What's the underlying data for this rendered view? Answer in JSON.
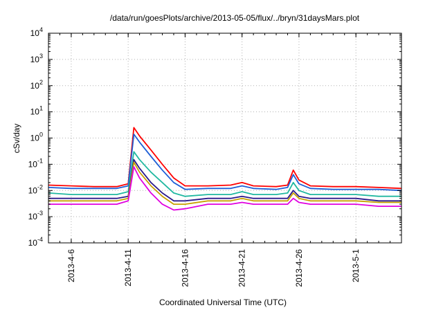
{
  "chart_data": {
    "type": "line",
    "title": "/data/run/goesPlots/archive/2013-05-05/flux/../bryn/31daysMars.plot",
    "xlabel": "Coordinated Universal Time (UTC)",
    "ylabel": "cSv/day",
    "yscale": "log",
    "ylim": [
      0.0001,
      10000
    ],
    "y_ticks": [
      {
        "base": "10",
        "exp": "-4",
        "value": 0.0001
      },
      {
        "base": "10",
        "exp": "-3",
        "value": 0.001
      },
      {
        "base": "10",
        "exp": "-2",
        "value": 0.01
      },
      {
        "base": "10",
        "exp": "-1",
        "value": 0.1
      },
      {
        "base": "10",
        "exp": "0",
        "value": 1
      },
      {
        "base": "10",
        "exp": "1",
        "value": 10
      },
      {
        "base": "10",
        "exp": "2",
        "value": 100
      },
      {
        "base": "10",
        "exp": "3",
        "value": 1000
      },
      {
        "base": "10",
        "exp": "4",
        "value": 10000
      }
    ],
    "xlim": [
      "2013-04-04",
      "2013-05-05"
    ],
    "x_ticks": [
      "2013-4-6",
      "2013-4-11",
      "2013-4-16",
      "2013-4-21",
      "2013-4-26",
      "2013-5-1"
    ],
    "grid": true,
    "legend": "none",
    "series": [
      {
        "color": "#ff0000",
        "x": [
          "2013-04-04",
          "2013-04-06",
          "2013-04-08",
          "2013-04-10",
          "2013-04-11",
          "2013-04-11T12",
          "2013-04-12",
          "2013-04-13",
          "2013-04-14",
          "2013-04-15",
          "2013-04-16",
          "2013-04-18",
          "2013-04-20",
          "2013-04-21",
          "2013-04-22",
          "2013-04-24",
          "2013-04-25",
          "2013-04-25T12",
          "2013-04-26",
          "2013-04-27",
          "2013-04-29",
          "2013-05-01",
          "2013-05-03",
          "2013-05-05"
        ],
        "y": [
          0.016,
          0.015,
          0.014,
          0.014,
          0.018,
          2.5,
          1.2,
          0.35,
          0.1,
          0.03,
          0.015,
          0.015,
          0.016,
          0.02,
          0.015,
          0.014,
          0.016,
          0.06,
          0.025,
          0.015,
          0.014,
          0.014,
          0.013,
          0.012
        ]
      },
      {
        "color": "#1f5fd6",
        "x": [
          "2013-04-04",
          "2013-04-06",
          "2013-04-08",
          "2013-04-10",
          "2013-04-11",
          "2013-04-11T12",
          "2013-04-12",
          "2013-04-13",
          "2013-04-14",
          "2013-04-15",
          "2013-04-16",
          "2013-04-18",
          "2013-04-20",
          "2013-04-21",
          "2013-04-22",
          "2013-04-24",
          "2013-04-25",
          "2013-04-25T12",
          "2013-04-26",
          "2013-04-27",
          "2013-04-29",
          "2013-05-01",
          "2013-05-03",
          "2013-05-05"
        ],
        "y": [
          0.013,
          0.012,
          0.012,
          0.012,
          0.015,
          1.4,
          0.7,
          0.2,
          0.06,
          0.02,
          0.011,
          0.012,
          0.012,
          0.015,
          0.012,
          0.011,
          0.013,
          0.04,
          0.018,
          0.012,
          0.011,
          0.011,
          0.011,
          0.01
        ]
      },
      {
        "color": "#20b8a0",
        "x": [
          "2013-04-04",
          "2013-04-06",
          "2013-04-08",
          "2013-04-10",
          "2013-04-11",
          "2013-04-11T12",
          "2013-04-12",
          "2013-04-13",
          "2013-04-14",
          "2013-04-15",
          "2013-04-16",
          "2013-04-18",
          "2013-04-20",
          "2013-04-21",
          "2013-04-22",
          "2013-04-24",
          "2013-04-25",
          "2013-04-25T12",
          "2013-04-26",
          "2013-04-27",
          "2013-04-29",
          "2013-05-01",
          "2013-05-03",
          "2013-05-05"
        ],
        "y": [
          0.008,
          0.007,
          0.007,
          0.007,
          0.009,
          0.3,
          0.15,
          0.05,
          0.02,
          0.008,
          0.006,
          0.007,
          0.007,
          0.009,
          0.007,
          0.007,
          0.008,
          0.02,
          0.01,
          0.007,
          0.007,
          0.007,
          0.006,
          0.006
        ]
      },
      {
        "color": "#2a1a8a",
        "x": [
          "2013-04-04",
          "2013-04-06",
          "2013-04-08",
          "2013-04-10",
          "2013-04-11",
          "2013-04-11T12",
          "2013-04-12",
          "2013-04-13",
          "2013-04-14",
          "2013-04-15",
          "2013-04-16",
          "2013-04-18",
          "2013-04-20",
          "2013-04-21",
          "2013-04-22",
          "2013-04-24",
          "2013-04-25",
          "2013-04-25T12",
          "2013-04-26",
          "2013-04-27",
          "2013-04-29",
          "2013-05-01",
          "2013-05-03",
          "2013-05-05"
        ],
        "y": [
          0.005,
          0.005,
          0.005,
          0.005,
          0.006,
          0.15,
          0.07,
          0.02,
          0.008,
          0.004,
          0.004,
          0.005,
          0.005,
          0.006,
          0.005,
          0.005,
          0.005,
          0.01,
          0.006,
          0.005,
          0.005,
          0.005,
          0.004,
          0.004
        ]
      },
      {
        "color": "#c8a000",
        "x": [
          "2013-04-04",
          "2013-04-06",
          "2013-04-08",
          "2013-04-10",
          "2013-04-11",
          "2013-04-11T12",
          "2013-04-12",
          "2013-04-13",
          "2013-04-14",
          "2013-04-15",
          "2013-04-16",
          "2013-04-18",
          "2013-04-20",
          "2013-04-21",
          "2013-04-22",
          "2013-04-24",
          "2013-04-25",
          "2013-04-25T12",
          "2013-04-26",
          "2013-04-27",
          "2013-04-29",
          "2013-05-01",
          "2013-05-03",
          "2013-05-05"
        ],
        "y": [
          0.004,
          0.004,
          0.004,
          0.004,
          0.005,
          0.12,
          0.05,
          0.015,
          0.006,
          0.003,
          0.003,
          0.004,
          0.004,
          0.005,
          0.004,
          0.004,
          0.004,
          0.008,
          0.005,
          0.004,
          0.004,
          0.004,
          0.0035,
          0.0035
        ]
      },
      {
        "color": "#e000e0",
        "x": [
          "2013-04-04",
          "2013-04-06",
          "2013-04-08",
          "2013-04-10",
          "2013-04-11",
          "2013-04-11T12",
          "2013-04-12",
          "2013-04-13",
          "2013-04-14",
          "2013-04-15",
          "2013-04-16",
          "2013-04-18",
          "2013-04-20",
          "2013-04-21",
          "2013-04-22",
          "2013-04-24",
          "2013-04-25",
          "2013-04-25T12",
          "2013-04-26",
          "2013-04-27",
          "2013-04-29",
          "2013-05-01",
          "2013-05-03",
          "2013-05-05"
        ],
        "y": [
          0.003,
          0.003,
          0.003,
          0.003,
          0.004,
          0.08,
          0.03,
          0.008,
          0.003,
          0.0018,
          0.002,
          0.003,
          0.003,
          0.0035,
          0.003,
          0.003,
          0.003,
          0.005,
          0.0035,
          0.003,
          0.003,
          0.003,
          0.0025,
          0.0025
        ]
      }
    ]
  }
}
